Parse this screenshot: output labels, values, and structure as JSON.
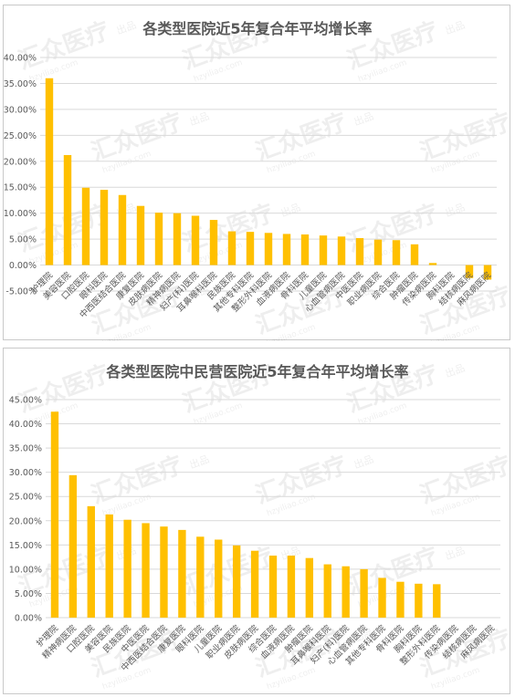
{
  "chart_data": [
    {
      "type": "bar",
      "title": "各类型医院近5年复合年平均增长率",
      "xlabel": "",
      "ylabel": "",
      "ylim": [
        -0.05,
        0.4
      ],
      "yticks": [
        "-5.00%",
        "0.00%",
        "5.00%",
        "10.00%",
        "15.00%",
        "20.00%",
        "25.00%",
        "30.00%",
        "35.00%",
        "40.00%"
      ],
      "grid": true,
      "bar_color": "#FFC000",
      "categories": [
        "护理院",
        "美容医院",
        "口腔医院",
        "眼科医院",
        "中西医结合医院",
        "康复医院",
        "皮肤病医院",
        "精神病医院",
        "妇产(科)医院",
        "耳鼻喉科医院",
        "民族医院",
        "其他专科医院",
        "整形外科医院",
        "血液病医院",
        "骨科医院",
        "儿童医院",
        "心血管病医院",
        "中医医院",
        "职业病医院",
        "综合医院",
        "肿瘤医院",
        "传染病医院",
        "胸科医院",
        "结核病医院",
        "麻风病医院"
      ],
      "values": [
        0.36,
        0.212,
        0.149,
        0.145,
        0.135,
        0.114,
        0.101,
        0.1,
        0.095,
        0.087,
        0.065,
        0.064,
        0.062,
        0.06,
        0.059,
        0.057,
        0.055,
        0.052,
        0.049,
        0.048,
        0.04,
        0.004,
        0.0,
        -0.025,
        -0.028
      ]
    },
    {
      "type": "bar",
      "title": "各类型医院中民营医院近5年复合年平均增长率",
      "xlabel": "",
      "ylabel": "",
      "ylim": [
        0,
        0.45
      ],
      "yticks": [
        "0.00%",
        "5.00%",
        "10.00%",
        "15.00%",
        "20.00%",
        "25.00%",
        "30.00%",
        "35.00%",
        "40.00%",
        "45.00%"
      ],
      "grid": true,
      "bar_color": "#FFC000",
      "categories": [
        "护理院",
        "精神病医院",
        "口腔医院",
        "美容医院",
        "民族医院",
        "中医医院",
        "中西医结合医院",
        "康复医院",
        "眼科医院",
        "儿童医院",
        "职业病医院",
        "皮肤病医院",
        "综合医院",
        "血液病医院",
        "肿瘤医院",
        "耳鼻喉科医院",
        "妇产(科)医院",
        "心血管病医院",
        "其他专科医院",
        "骨科医院",
        "胸科医院",
        "整形外科医院",
        "传染病医院",
        "结核病医院",
        "麻风病医院"
      ],
      "values": [
        0.425,
        0.294,
        0.23,
        0.213,
        0.202,
        0.195,
        0.188,
        0.181,
        0.167,
        0.161,
        0.149,
        0.138,
        0.128,
        0.128,
        0.123,
        0.11,
        0.106,
        0.1,
        0.082,
        0.074,
        0.07,
        0.069,
        0.0,
        0.0,
        0.0
      ]
    }
  ],
  "watermark": {
    "brand": "汇众医疗",
    "site": "hzyiliao.com",
    "tag": "出品"
  }
}
